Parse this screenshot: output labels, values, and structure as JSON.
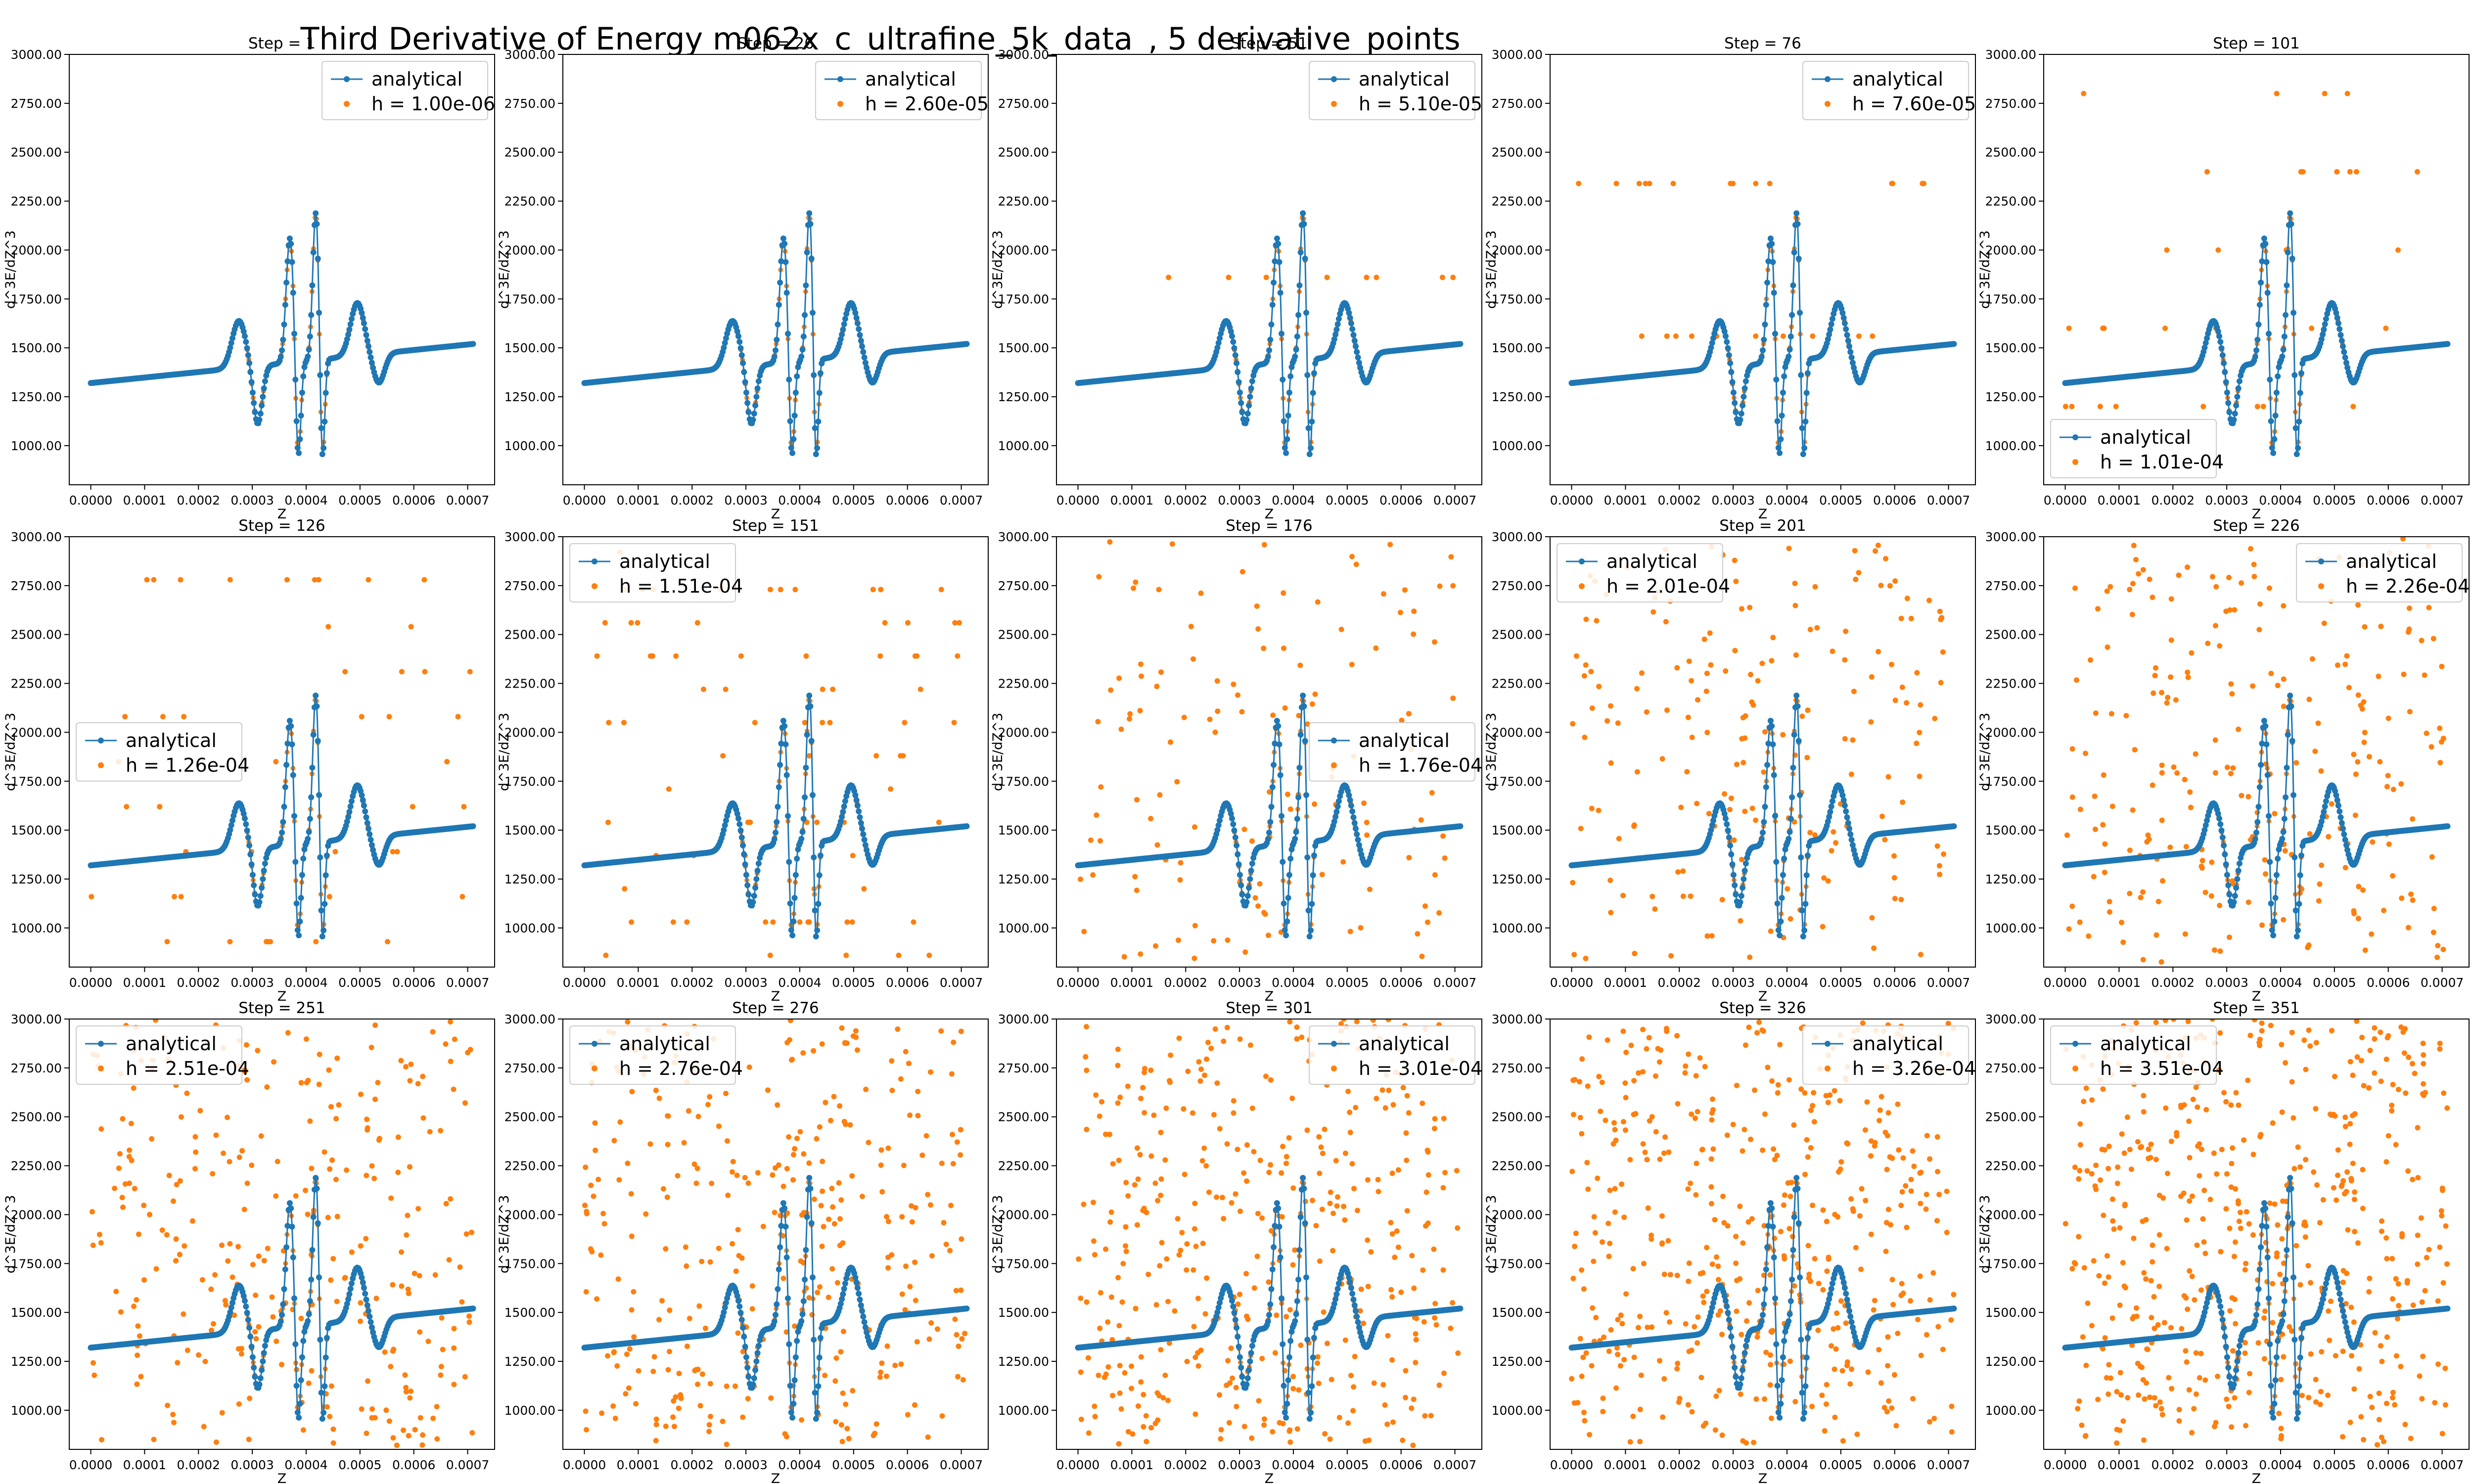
{
  "chart_data": {
    "type": "scatter",
    "title": "Third Derivative of Energy m062x_c_ultrafine_5k_data_, 5 derivative_points",
    "xlabel": "Z",
    "ylabel": "d^3E/dZ^3",
    "xlim": [
      -4e-05,
      0.00075
    ],
    "ylim": [
      800,
      3000
    ],
    "x_ticks": [
      "0.0000",
      "0.0001",
      "0.0002",
      "0.0003",
      "0.0004",
      "0.0005",
      "0.0006",
      "0.0007"
    ],
    "y_ticks": [
      "1000.00",
      "1250.00",
      "1500.00",
      "1750.00",
      "2000.00",
      "2250.00",
      "2500.00",
      "2750.00",
      "3000.00"
    ],
    "grid": false,
    "series_names": [
      "analytical"
    ],
    "series_colors": [
      "#1f77b4",
      "#ff7f0e"
    ],
    "panels": [
      {
        "title": "Step = 1",
        "h": "h = 1.00e-06",
        "legend": "top-right",
        "noise_count": 0
      },
      {
        "title": "Step = 26",
        "h": "h = 2.60e-05",
        "legend": "top-right",
        "noise_count": 0
      },
      {
        "title": "Step = 51",
        "h": "h = 5.10e-05",
        "legend": "top-right",
        "noise_count": 8,
        "noise_levels": [
          1860
        ]
      },
      {
        "title": "Step = 76",
        "h": "h = 7.60e-05",
        "legend": "top-right",
        "noise_count": 24,
        "noise_levels": [
          1560,
          2340
        ]
      },
      {
        "title": "Step = 101",
        "h": "h = 1.01e-04",
        "legend": "bottom-left",
        "noise_count": 30,
        "noise_levels": [
          1200,
          1600,
          2000,
          2400,
          2800
        ]
      },
      {
        "title": "Step = 126",
        "h": "h = 1.26e-04",
        "legend": "center-left",
        "noise_count": 45,
        "noise_levels": [
          930,
          1160,
          1390,
          1620,
          1850,
          2080,
          2310,
          2540,
          2780
        ]
      },
      {
        "title": "Step = 151",
        "h": "h = 1.51e-04",
        "legend": "top-left",
        "noise_count": 80,
        "noise_levels": [
          860,
          1030,
          1200,
          1370,
          1540,
          1710,
          1880,
          2050,
          2220,
          2390,
          2560,
          2730,
          2920
        ]
      },
      {
        "title": "Step = 176",
        "h": "h = 1.76e-04",
        "legend": "center-right",
        "noise_count": 130,
        "noise_levels": []
      },
      {
        "title": "Step = 201",
        "h": "h = 2.01e-04",
        "legend": "top-left",
        "noise_count": 190,
        "noise_levels": []
      },
      {
        "title": "Step = 226",
        "h": "h = 2.26e-04",
        "legend": "top-right",
        "noise_count": 240,
        "noise_levels": []
      },
      {
        "title": "Step = 251",
        "h": "h = 2.51e-04",
        "legend": "top-left",
        "noise_count": 290,
        "noise_levels": []
      },
      {
        "title": "Step = 276",
        "h": "h = 2.76e-04",
        "legend": "top-left",
        "noise_count": 340,
        "noise_levels": []
      },
      {
        "title": "Step = 301",
        "h": "h = 3.01e-04",
        "legend": "top-right",
        "noise_count": 400,
        "noise_levels": []
      },
      {
        "title": "Step = 326",
        "h": "h = 3.26e-04",
        "legend": "top-right",
        "noise_count": 460,
        "noise_levels": []
      },
      {
        "title": "Step = 351",
        "h": "h = 3.51e-04",
        "legend": "top-left",
        "noise_count": 520,
        "noise_levels": []
      }
    ]
  }
}
